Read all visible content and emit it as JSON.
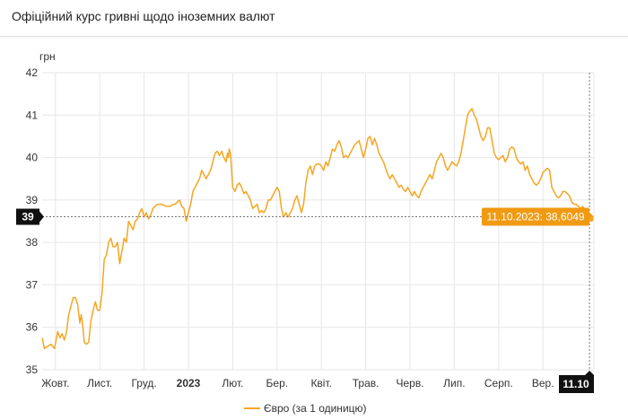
{
  "header": {
    "title": "Офіційний курс гривні щодо іноземних валют"
  },
  "colors": {
    "line": "#f5a623",
    "tooltip_bg": "#f09a12",
    "badge_bg": "#111111",
    "grid": "#e6e6e6"
  },
  "chart_data": {
    "type": "line",
    "title": "Офіційний курс гривні щодо іноземних валют",
    "ylabel": "грн",
    "ylim": [
      35,
      42
    ],
    "yticks": [
      "35",
      "36",
      "37",
      "38",
      "39",
      "40",
      "41",
      "42"
    ],
    "xlim": [
      0,
      12.45
    ],
    "xticks": [
      {
        "label": "Жовт.",
        "x": 0.3,
        "bold": false
      },
      {
        "label": "Лист.",
        "x": 1.3,
        "bold": false
      },
      {
        "label": "Груд.",
        "x": 2.3,
        "bold": false
      },
      {
        "label": "2023",
        "x": 3.3,
        "bold": true
      },
      {
        "label": "Лют.",
        "x": 4.3,
        "bold": false
      },
      {
        "label": "Бер.",
        "x": 5.3,
        "bold": false
      },
      {
        "label": "Квіт.",
        "x": 6.3,
        "bold": false
      },
      {
        "label": "Трав.",
        "x": 7.3,
        "bold": false
      },
      {
        "label": "Черв.",
        "x": 8.3,
        "bold": false
      },
      {
        "label": "Лип.",
        "x": 9.3,
        "bold": false
      },
      {
        "label": "Серп.",
        "x": 10.3,
        "bold": false
      },
      {
        "label": "Вер.",
        "x": 11.3,
        "bold": false
      }
    ],
    "series": [
      {
        "name": "Євро (за 1 одиницю)",
        "points": [
          [
            0.0,
            35.75
          ],
          [
            0.05,
            35.5
          ],
          [
            0.12,
            35.55
          ],
          [
            0.2,
            35.6
          ],
          [
            0.28,
            35.5
          ],
          [
            0.35,
            35.9
          ],
          [
            0.4,
            35.75
          ],
          [
            0.45,
            35.85
          ],
          [
            0.5,
            35.7
          ],
          [
            0.55,
            35.9
          ],
          [
            0.6,
            36.3
          ],
          [
            0.65,
            36.5
          ],
          [
            0.7,
            36.7
          ],
          [
            0.75,
            36.7
          ],
          [
            0.8,
            36.55
          ],
          [
            0.85,
            36.1
          ],
          [
            0.88,
            36.3
          ],
          [
            0.92,
            36.0
          ],
          [
            0.95,
            35.65
          ],
          [
            1.0,
            35.6
          ],
          [
            1.05,
            35.65
          ],
          [
            1.1,
            36.15
          ],
          [
            1.15,
            36.4
          ],
          [
            1.2,
            36.6
          ],
          [
            1.25,
            36.4
          ],
          [
            1.3,
            36.4
          ],
          [
            1.35,
            36.8
          ],
          [
            1.4,
            37.6
          ],
          [
            1.45,
            37.7
          ],
          [
            1.5,
            38.0
          ],
          [
            1.55,
            38.1
          ],
          [
            1.6,
            37.9
          ],
          [
            1.65,
            37.9
          ],
          [
            1.7,
            38.0
          ],
          [
            1.75,
            37.5
          ],
          [
            1.8,
            37.8
          ],
          [
            1.85,
            38.1
          ],
          [
            1.9,
            38.0
          ],
          [
            1.95,
            38.5
          ],
          [
            2.0,
            38.4
          ],
          [
            2.05,
            38.3
          ],
          [
            2.1,
            38.5
          ],
          [
            2.15,
            38.55
          ],
          [
            2.2,
            38.7
          ],
          [
            2.25,
            38.8
          ],
          [
            2.3,
            38.6
          ],
          [
            2.35,
            38.7
          ],
          [
            2.4,
            38.55
          ],
          [
            2.45,
            38.65
          ],
          [
            2.5,
            38.8
          ],
          [
            2.6,
            38.9
          ],
          [
            2.7,
            38.9
          ],
          [
            2.8,
            38.85
          ],
          [
            2.9,
            38.85
          ],
          [
            2.95,
            38.9
          ],
          [
            3.0,
            38.9
          ],
          [
            3.05,
            38.95
          ],
          [
            3.1,
            39.0
          ],
          [
            3.15,
            38.85
          ],
          [
            3.2,
            38.8
          ],
          [
            3.25,
            38.5
          ],
          [
            3.3,
            38.7
          ],
          [
            3.35,
            38.9
          ],
          [
            3.4,
            39.2
          ],
          [
            3.45,
            39.3
          ],
          [
            3.5,
            39.4
          ],
          [
            3.55,
            39.5
          ],
          [
            3.6,
            39.7
          ],
          [
            3.65,
            39.6
          ],
          [
            3.7,
            39.5
          ],
          [
            3.75,
            39.6
          ],
          [
            3.8,
            39.7
          ],
          [
            3.85,
            39.9
          ],
          [
            3.9,
            40.1
          ],
          [
            3.95,
            40.15
          ],
          [
            4.0,
            40.05
          ],
          [
            4.05,
            40.15
          ],
          [
            4.1,
            40.0
          ],
          [
            4.15,
            39.9
          ],
          [
            4.18,
            40.1
          ],
          [
            4.2,
            40.0
          ],
          [
            4.22,
            40.2
          ],
          [
            4.25,
            40.1
          ],
          [
            4.3,
            39.3
          ],
          [
            4.35,
            39.2
          ],
          [
            4.4,
            39.35
          ],
          [
            4.45,
            39.4
          ],
          [
            4.5,
            39.3
          ],
          [
            4.55,
            39.15
          ],
          [
            4.6,
            39.2
          ],
          [
            4.65,
            39.1
          ],
          [
            4.7,
            39.0
          ],
          [
            4.75,
            38.8
          ],
          [
            4.8,
            38.85
          ],
          [
            4.85,
            38.9
          ],
          [
            4.9,
            38.7
          ],
          [
            4.95,
            38.75
          ],
          [
            5.0,
            38.7
          ],
          [
            5.05,
            38.8
          ],
          [
            5.1,
            39.0
          ],
          [
            5.15,
            39.0
          ],
          [
            5.2,
            39.1
          ],
          [
            5.25,
            39.2
          ],
          [
            5.3,
            39.3
          ],
          [
            5.35,
            39.2
          ],
          [
            5.4,
            38.8
          ],
          [
            5.45,
            38.6
          ],
          [
            5.5,
            38.7
          ],
          [
            5.55,
            38.6
          ],
          [
            5.6,
            38.7
          ],
          [
            5.65,
            38.8
          ],
          [
            5.7,
            39.0
          ],
          [
            5.75,
            39.1
          ],
          [
            5.8,
            38.9
          ],
          [
            5.85,
            38.7
          ],
          [
            5.9,
            38.9
          ],
          [
            5.95,
            39.4
          ],
          [
            6.0,
            39.7
          ],
          [
            6.05,
            39.8
          ],
          [
            6.1,
            39.6
          ],
          [
            6.15,
            39.8
          ],
          [
            6.2,
            39.85
          ],
          [
            6.25,
            39.85
          ],
          [
            6.3,
            39.8
          ],
          [
            6.35,
            39.7
          ],
          [
            6.4,
            39.9
          ],
          [
            6.45,
            39.8
          ],
          [
            6.5,
            40.0
          ],
          [
            6.55,
            40.2
          ],
          [
            6.6,
            40.15
          ],
          [
            6.65,
            40.3
          ],
          [
            6.7,
            40.4
          ],
          [
            6.75,
            40.25
          ],
          [
            6.8,
            40.0
          ],
          [
            6.85,
            40.05
          ],
          [
            6.9,
            40.0
          ],
          [
            6.95,
            40.1
          ],
          [
            7.0,
            40.2
          ],
          [
            7.05,
            40.3
          ],
          [
            7.1,
            40.35
          ],
          [
            7.15,
            40.4
          ],
          [
            7.2,
            40.2
          ],
          [
            7.25,
            40.0
          ],
          [
            7.3,
            40.2
          ],
          [
            7.35,
            40.45
          ],
          [
            7.4,
            40.5
          ],
          [
            7.45,
            40.3
          ],
          [
            7.5,
            40.45
          ],
          [
            7.55,
            40.3
          ],
          [
            7.6,
            40.1
          ],
          [
            7.65,
            40.0
          ],
          [
            7.7,
            39.9
          ],
          [
            7.75,
            39.75
          ],
          [
            7.8,
            39.6
          ],
          [
            7.85,
            39.5
          ],
          [
            7.9,
            39.6
          ],
          [
            7.95,
            39.5
          ],
          [
            8.0,
            39.4
          ],
          [
            8.05,
            39.3
          ],
          [
            8.1,
            39.35
          ],
          [
            8.15,
            39.25
          ],
          [
            8.2,
            39.2
          ],
          [
            8.25,
            39.3
          ],
          [
            8.3,
            39.2
          ],
          [
            8.35,
            39.1
          ],
          [
            8.4,
            39.2
          ],
          [
            8.45,
            39.1
          ],
          [
            8.5,
            39.05
          ],
          [
            8.55,
            39.2
          ],
          [
            8.6,
            39.3
          ],
          [
            8.65,
            39.4
          ],
          [
            8.7,
            39.5
          ],
          [
            8.75,
            39.6
          ],
          [
            8.8,
            39.5
          ],
          [
            8.85,
            39.7
          ],
          [
            8.9,
            39.9
          ],
          [
            8.95,
            40.0
          ],
          [
            9.0,
            40.1
          ],
          [
            9.05,
            40.0
          ],
          [
            9.1,
            39.8
          ],
          [
            9.15,
            39.7
          ],
          [
            9.2,
            39.8
          ],
          [
            9.25,
            39.9
          ],
          [
            9.3,
            39.85
          ],
          [
            9.35,
            39.8
          ],
          [
            9.4,
            39.9
          ],
          [
            9.45,
            40.1
          ],
          [
            9.5,
            40.4
          ],
          [
            9.55,
            40.7
          ],
          [
            9.6,
            41.0
          ],
          [
            9.65,
            41.1
          ],
          [
            9.7,
            41.15
          ],
          [
            9.75,
            41.0
          ],
          [
            9.8,
            40.9
          ],
          [
            9.85,
            40.7
          ],
          [
            9.9,
            40.5
          ],
          [
            9.95,
            40.4
          ],
          [
            10.0,
            40.5
          ],
          [
            10.05,
            40.7
          ],
          [
            10.1,
            40.7
          ],
          [
            10.15,
            40.4
          ],
          [
            10.2,
            40.1
          ],
          [
            10.25,
            40.0
          ],
          [
            10.3,
            39.95
          ],
          [
            10.35,
            40.0
          ],
          [
            10.4,
            40.05
          ],
          [
            10.45,
            39.9
          ],
          [
            10.5,
            40.0
          ],
          [
            10.55,
            40.2
          ],
          [
            10.6,
            40.25
          ],
          [
            10.65,
            40.2
          ],
          [
            10.7,
            40.0
          ],
          [
            10.75,
            39.9
          ],
          [
            10.8,
            39.85
          ],
          [
            10.85,
            39.9
          ],
          [
            10.9,
            39.7
          ],
          [
            10.95,
            39.8
          ],
          [
            11.0,
            39.6
          ],
          [
            11.05,
            39.5
          ],
          [
            11.1,
            39.4
          ],
          [
            11.15,
            39.35
          ],
          [
            11.2,
            39.4
          ],
          [
            11.25,
            39.5
          ],
          [
            11.3,
            39.65
          ],
          [
            11.35,
            39.7
          ],
          [
            11.4,
            39.75
          ],
          [
            11.45,
            39.7
          ],
          [
            11.5,
            39.3
          ],
          [
            11.55,
            39.2
          ],
          [
            11.6,
            39.1
          ],
          [
            11.65,
            39.05
          ],
          [
            11.7,
            39.1
          ],
          [
            11.75,
            39.2
          ],
          [
            11.8,
            39.2
          ],
          [
            11.85,
            39.15
          ],
          [
            11.9,
            39.1
          ],
          [
            11.95,
            38.95
          ],
          [
            12.0,
            38.9
          ],
          [
            12.05,
            38.9
          ],
          [
            12.1,
            38.85
          ],
          [
            12.15,
            38.8
          ],
          [
            12.2,
            38.85
          ],
          [
            12.25,
            38.75
          ],
          [
            12.3,
            38.65
          ],
          [
            12.35,
            38.6
          ]
        ]
      }
    ],
    "crosshair": {
      "y": 38.6049,
      "x": 12.35
    },
    "y_badge": "39",
    "x_badge": "11.10",
    "tooltip": "11.10.2023: 38,6049",
    "legend": {
      "label": "Євро (за 1 одиницю)",
      "placement": "bottom-center"
    },
    "grid": true
  }
}
